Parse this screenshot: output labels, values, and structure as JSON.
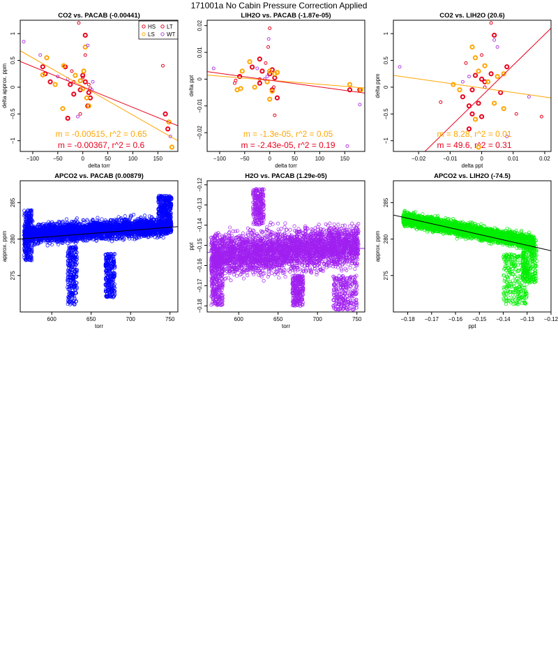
{
  "page_title": "171001a   No Cabin Pressure Correction Applied",
  "colors": {
    "HS": "#e8001c",
    "LS": "#ffa500",
    "LT": "#e8001c",
    "WT": "#b040e0",
    "blue": "#0000ff",
    "purple": "#a020f0",
    "green": "#00ee00",
    "black": "#000000"
  },
  "chart_data": [
    {
      "type": "scatter",
      "title": "CO2 vs. PACAB (-0.00441)",
      "xlabel": "delta torr",
      "ylabel": "delta approx. ppm",
      "xlim": [
        -125,
        190
      ],
      "ylim": [
        -1.2,
        1.25
      ],
      "xticks": [
        -100,
        -50,
        0,
        50,
        100,
        150
      ],
      "yticks": [
        -1.0,
        -0.5,
        0.0,
        0.5,
        1.0
      ],
      "legend": {
        "position": "top-right",
        "entries": [
          {
            "label": "HS",
            "color": "#e8001c"
          },
          {
            "label": "LT",
            "color": "#e8001c"
          },
          {
            "label": "LS",
            "color": "#ffa500"
          },
          {
            "label": "WT",
            "color": "#b040e0"
          }
        ]
      },
      "annotations": [
        {
          "text": "m = -0.00515, r^2 = 0.65",
          "color": "#ffa500"
        },
        {
          "text": "m = -0.00367, r^2 = 0.6",
          "color": "#e8001c"
        }
      ],
      "fit_lines": [
        {
          "color": "#ffa500",
          "x": [
            -125,
            190
          ],
          "y": [
            0.68,
            -1.0
          ]
        },
        {
          "color": "#e8001c",
          "x": [
            -125,
            190
          ],
          "y": [
            0.48,
            -0.72
          ]
        }
      ],
      "series": [
        {
          "name": "HS",
          "color": "#e8001c",
          "thick": true,
          "points": [
            [
              5,
              0.97
            ],
            [
              -80,
              0.38
            ],
            [
              -75,
              0.25
            ],
            [
              -65,
              0.1
            ],
            [
              -35,
              0.38
            ],
            [
              -25,
              0.05
            ],
            [
              -18,
              -0.13
            ],
            [
              0,
              0.22
            ],
            [
              -5,
              -0.05
            ],
            [
              5,
              0.1
            ],
            [
              12,
              -0.1
            ],
            [
              15,
              -0.2
            ],
            [
              10,
              -0.35
            ],
            [
              -30,
              -0.58
            ],
            [
              165,
              -0.5
            ],
            [
              170,
              -0.78
            ]
          ]
        },
        {
          "name": "LS",
          "color": "#ffa500",
          "thick": true,
          "points": [
            [
              5,
              0.75
            ],
            [
              -72,
              0.55
            ],
            [
              -55,
              0.05
            ],
            [
              -38,
              0.4
            ],
            [
              -40,
              -0.4
            ],
            [
              -5,
              0.12
            ],
            [
              0,
              -0.03
            ],
            [
              8,
              -0.2
            ],
            [
              12,
              -0.35
            ],
            [
              172,
              -0.65
            ],
            [
              178,
              -1.12
            ],
            [
              -80,
              0.23
            ],
            [
              -15,
              0.22
            ],
            [
              2,
              0.3
            ]
          ]
        },
        {
          "name": "LT",
          "color": "#e8001c",
          "thick": false,
          "points": [
            [
              -8,
              1.2
            ],
            [
              -18,
              0.1
            ],
            [
              5,
              0.6
            ],
            [
              15,
              -0.02
            ],
            [
              12,
              0.05
            ],
            [
              -5,
              -0.5
            ],
            [
              160,
              0.4
            ],
            [
              0,
              0.18
            ],
            [
              -22,
              0.3
            ]
          ]
        },
        {
          "name": "WT",
          "color": "#b040e0",
          "thick": false,
          "points": [
            [
              -118,
              0.85
            ],
            [
              -85,
              0.6
            ],
            [
              10,
              0.78
            ],
            [
              -50,
              0.2
            ],
            [
              20,
              0.1
            ],
            [
              -10,
              -0.55
            ],
            [
              175,
              -0.92
            ],
            [
              -30,
              0.15
            ],
            [
              18,
              -0.05
            ]
          ]
        }
      ]
    },
    {
      "type": "scatter",
      "title": "LIH2O vs. PACAB (-1.87e-05)",
      "xlabel": "delta torr",
      "ylabel": "delta ppt",
      "xlim": [
        -125,
        190
      ],
      "ylim": [
        -0.027,
        0.022
      ],
      "xticks": [
        -100,
        -50,
        0,
        50,
        100,
        150
      ],
      "yticks": [
        -0.02,
        -0.01,
        0.0,
        0.01,
        0.02
      ],
      "annotations": [
        {
          "text": "m = -1.3e-05, r^2 = 0.05",
          "color": "#ffa500"
        },
        {
          "text": "m = -2.43e-05, r^2 = 0.19",
          "color": "#e8001c"
        }
      ],
      "fit_lines": [
        {
          "color": "#ffa500",
          "x": [
            -125,
            190
          ],
          "y": [
            0.0015,
            -0.0033
          ]
        },
        {
          "color": "#e8001c",
          "x": [
            -125,
            190
          ],
          "y": [
            0.0028,
            -0.0052
          ]
        }
      ],
      "series": [
        {
          "name": "HS",
          "color": "#e8001c",
          "thick": true,
          "points": [
            [
              -20,
              0.0075
            ],
            [
              -35,
              0.0045
            ],
            [
              -60,
              0.001
            ],
            [
              -15,
              0.003
            ],
            [
              0,
              0.002
            ],
            [
              5,
              0.0035
            ],
            [
              10,
              0.0005
            ],
            [
              -20,
              -0.0015
            ],
            [
              5,
              -0.004
            ],
            [
              15,
              -0.007
            ],
            [
              160,
              -0.004
            ],
            [
              180,
              -0.004
            ]
          ]
        },
        {
          "name": "LS",
          "color": "#ffa500",
          "thick": true,
          "points": [
            [
              -40,
              0.0065
            ],
            [
              -55,
              0.003
            ],
            [
              -65,
              -0.004
            ],
            [
              -58,
              -0.0035
            ],
            [
              -30,
              -0.003
            ],
            [
              -5,
              -0.001
            ],
            [
              0,
              0.003
            ],
            [
              5,
              -0.0045
            ],
            [
              10,
              0.002
            ],
            [
              15,
              0.0025
            ],
            [
              0,
              -0.0075
            ],
            [
              160,
              -0.002
            ],
            [
              182,
              -0.004
            ]
          ]
        },
        {
          "name": "LT",
          "color": "#e8001c",
          "thick": false,
          "points": [
            [
              0,
              0.019
            ],
            [
              -3,
              0.012
            ],
            [
              -8,
              0.006
            ],
            [
              8,
              -0.003
            ],
            [
              -20,
              0.0
            ],
            [
              10,
              -0.0135
            ],
            [
              -68,
              -0.0005
            ],
            [
              -70,
              -0.0015
            ]
          ]
        },
        {
          "name": "WT",
          "color": "#b040e0",
          "thick": false,
          "points": [
            [
              -112,
              0.004
            ],
            [
              -25,
              0.004
            ],
            [
              -10,
              0.0
            ],
            [
              -5,
              0.001
            ],
            [
              180,
              -0.0095
            ],
            [
              155,
              -0.025
            ],
            [
              -2,
              0.015
            ]
          ]
        }
      ]
    },
    {
      "type": "scatter",
      "title": "CO2 vs. LIH2O (20.6)",
      "xlabel": "delta ppt",
      "ylabel": "delta ppm",
      "xlim": [
        -0.028,
        0.022
      ],
      "ylim": [
        -1.2,
        1.25
      ],
      "xticks": [
        -0.02,
        -0.01,
        0.0,
        0.01,
        0.02
      ],
      "yticks": [
        -1.0,
        -0.5,
        0.0,
        0.5,
        1.0
      ],
      "annotations": [
        {
          "text": "m = 8.28, r^2 = 0.01",
          "color": "#ffa500"
        },
        {
          "text": "m = 49.6, r^2 = 0.31",
          "color": "#e8001c"
        }
      ],
      "fit_lines": [
        {
          "color": "#ffa500",
          "x": [
            -0.028,
            0.022
          ],
          "y": [
            0.22,
            -0.2
          ]
        },
        {
          "color": "#e8001c",
          "x": [
            -0.018,
            0.022
          ],
          "y": [
            -1.2,
            1.1
          ]
        }
      ],
      "series": [
        {
          "name": "HS",
          "color": "#e8001c",
          "thick": true,
          "points": [
            [
              0.004,
              0.97
            ],
            [
              0.008,
              0.38
            ],
            [
              0.006,
              -0.1
            ],
            [
              0.003,
              0.25
            ],
            [
              0.001,
              0.1
            ],
            [
              -0.002,
              0.22
            ],
            [
              -0.003,
              -0.05
            ],
            [
              0.0,
              0.15
            ],
            [
              -0.006,
              -0.18
            ],
            [
              -0.004,
              -0.35
            ],
            [
              -0.003,
              -0.5
            ],
            [
              0.0,
              -0.55
            ],
            [
              -0.004,
              -0.78
            ],
            [
              -0.001,
              -0.3
            ]
          ]
        },
        {
          "name": "LS",
          "color": "#ffa500",
          "thick": true,
          "points": [
            [
              -0.003,
              0.75
            ],
            [
              -0.002,
              0.55
            ],
            [
              0.001,
              0.4
            ],
            [
              0.005,
              0.2
            ],
            [
              0.007,
              0.25
            ],
            [
              -0.009,
              0.05
            ],
            [
              -0.007,
              -0.05
            ],
            [
              -0.001,
              0.3
            ],
            [
              -0.002,
              -0.6
            ],
            [
              0.004,
              -0.3
            ],
            [
              0.007,
              -0.4
            ],
            [
              -0.001,
              -1.12
            ],
            [
              0.002,
              0.1
            ]
          ]
        },
        {
          "name": "LT",
          "color": "#e8001c",
          "thick": false,
          "points": [
            [
              0.003,
              1.2
            ],
            [
              -0.013,
              -0.28
            ],
            [
              0.011,
              -0.5
            ],
            [
              0.019,
              -0.55
            ],
            [
              0.001,
              0.0
            ],
            [
              -0.005,
              0.45
            ],
            [
              0.0,
              0.6
            ]
          ]
        },
        {
          "name": "WT",
          "color": "#b040e0",
          "thick": false,
          "points": [
            [
              -0.026,
              0.38
            ],
            [
              0.004,
              0.88
            ],
            [
              0.005,
              0.75
            ],
            [
              -0.006,
              0.1
            ],
            [
              0.015,
              -0.18
            ],
            [
              0.008,
              -0.92
            ],
            [
              -0.004,
              0.2
            ]
          ]
        }
      ]
    },
    {
      "type": "scatter",
      "title": "APCO2 vs. PACAB (0.00879)",
      "xlabel": "torr",
      "ylabel": "approx. ppm",
      "xlim": [
        560,
        760
      ],
      "ylim": [
        270,
        288
      ],
      "xticks": [
        600,
        650,
        700,
        750
      ],
      "yticks": [
        275,
        280,
        285
      ],
      "color": "#0000ff",
      "fit_lines": [
        {
          "color": "#000000",
          "x": [
            560,
            760
          ],
          "y": [
            280.0,
            281.7
          ]
        }
      ],
      "cloud": {
        "x_range": [
          565,
          752
        ],
        "band_center": [
          280.6,
          281.8
        ],
        "band_halfwidth": 2.2,
        "outliers": [
          {
            "x": [
              620,
              632
            ],
            "y": [
              271,
              279
            ]
          },
          {
            "x": [
              668,
              680
            ],
            "y": [
              272,
              278
            ]
          },
          {
            "x": [
              565,
              575
            ],
            "y": [
              277,
              284
            ]
          },
          {
            "x": [
              735,
              752
            ],
            "y": [
              283,
              286
            ]
          }
        ]
      }
    },
    {
      "type": "scatter",
      "title": "H2O vs. PACAB (1.29e-05)",
      "xlabel": "torr",
      "ylabel": "ppt",
      "xlim": [
        560,
        760
      ],
      "ylim": [
        -0.183,
        -0.118
      ],
      "xticks": [
        600,
        650,
        700,
        750
      ],
      "yticks": [
        -0.18,
        -0.17,
        -0.16,
        -0.15,
        -0.14,
        -0.13,
        -0.12
      ],
      "color": "#a020f0",
      "fit_lines": [
        {
          "color": "#a020f0",
          "x": [
            560,
            760
          ],
          "y": [
            -0.1535,
            -0.1515
          ]
        }
      ],
      "cloud": {
        "x_range": [
          565,
          752
        ],
        "band_center": [
          -0.155,
          -0.15
        ],
        "band_halfwidth": 0.018,
        "outliers": [
          {
            "x": [
              565,
              580
            ],
            "y": [
              -0.18,
              -0.155
            ]
          },
          {
            "x": [
              618,
              632
            ],
            "y": [
              -0.14,
              -0.122
            ]
          },
          {
            "x": [
              668,
              682
            ],
            "y": [
              -0.18,
              -0.165
            ]
          },
          {
            "x": [
              720,
              750
            ],
            "y": [
              -0.182,
              -0.165
            ]
          }
        ]
      }
    },
    {
      "type": "scatter",
      "title": "APCO2 vs. LIH2O (-74.5)",
      "xlabel": "ppt",
      "ylabel": "approx. ppm",
      "xlim": [
        -0.186,
        -0.12
      ],
      "ylim": [
        270,
        288
      ],
      "xticks": [
        -0.18,
        -0.17,
        -0.16,
        -0.15,
        -0.14,
        -0.13,
        -0.12
      ],
      "yticks": [
        275,
        280,
        285
      ],
      "color": "#00ee00",
      "fit_lines": [
        {
          "color": "#000000",
          "x": [
            -0.186,
            -0.12
          ],
          "y": [
            283.3,
            278.4
          ]
        }
      ],
      "cloud": {
        "x_range": [
          -0.182,
          -0.127
        ],
        "band_center": [
          282.8,
          279.5
        ],
        "band_halfwidth": 1.6,
        "outliers": [
          {
            "x": [
              -0.14,
              -0.13
            ],
            "y": [
              271,
              278
            ]
          },
          {
            "x": [
              -0.132,
              -0.126
            ],
            "y": [
              274,
              280
            ]
          }
        ]
      }
    }
  ]
}
